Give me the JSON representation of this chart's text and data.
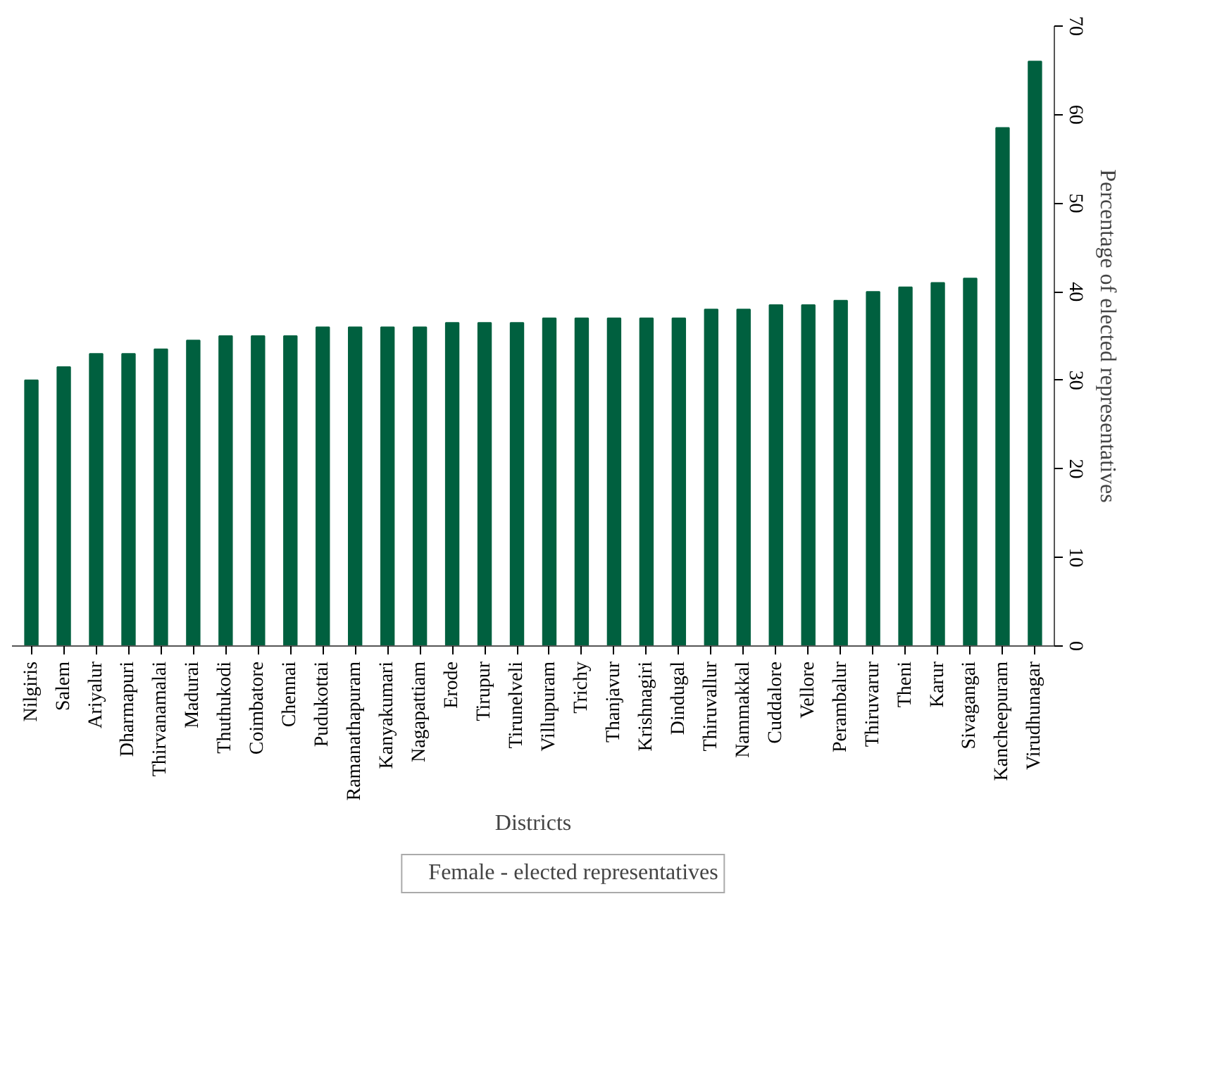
{
  "chart_data": {
    "type": "bar",
    "xlabel": "Districts",
    "ylabel": "Percentage of elected representatives",
    "categories": [
      "Nilgiris",
      "Salem",
      "Ariyalur",
      "Dharmapuri",
      "Thirvanamalai",
      "Madurai",
      "Thuthukodi",
      "Coimbatore",
      "Chennai",
      "Pudukottai",
      "Ramanathapuram",
      "Kanyakumari",
      "Nagapattiam",
      "Erode",
      "Tirupur",
      "Tirunelveli",
      "Villupuram",
      "Trichy",
      "Thanjavur",
      "Krishnagiri",
      "Dindugal",
      "Thiruvallur",
      "Nammakkal",
      "Cuddalore",
      "Vellore",
      "Perambalur",
      "Thiruvarur",
      "Theni",
      "Karur",
      "Sivagangai",
      "Kancheepuram",
      "Virudhunagar"
    ],
    "series": [
      {
        "name": "Female - elected representatives",
        "color": "#00603f",
        "values": [
          30,
          31.5,
          33,
          33,
          33.5,
          34.5,
          35,
          35,
          35,
          36,
          36,
          36,
          36,
          36.5,
          36.5,
          36.5,
          37,
          37,
          37,
          37,
          37,
          38,
          38,
          38.5,
          38.5,
          39,
          40,
          40.5,
          41,
          41.5,
          58.5,
          66
        ]
      }
    ],
    "ylim": [
      0,
      70
    ],
    "yticks": [
      0,
      10,
      20,
      30,
      40,
      50,
      60,
      70
    ],
    "grid": false,
    "legend": "bottom"
  }
}
